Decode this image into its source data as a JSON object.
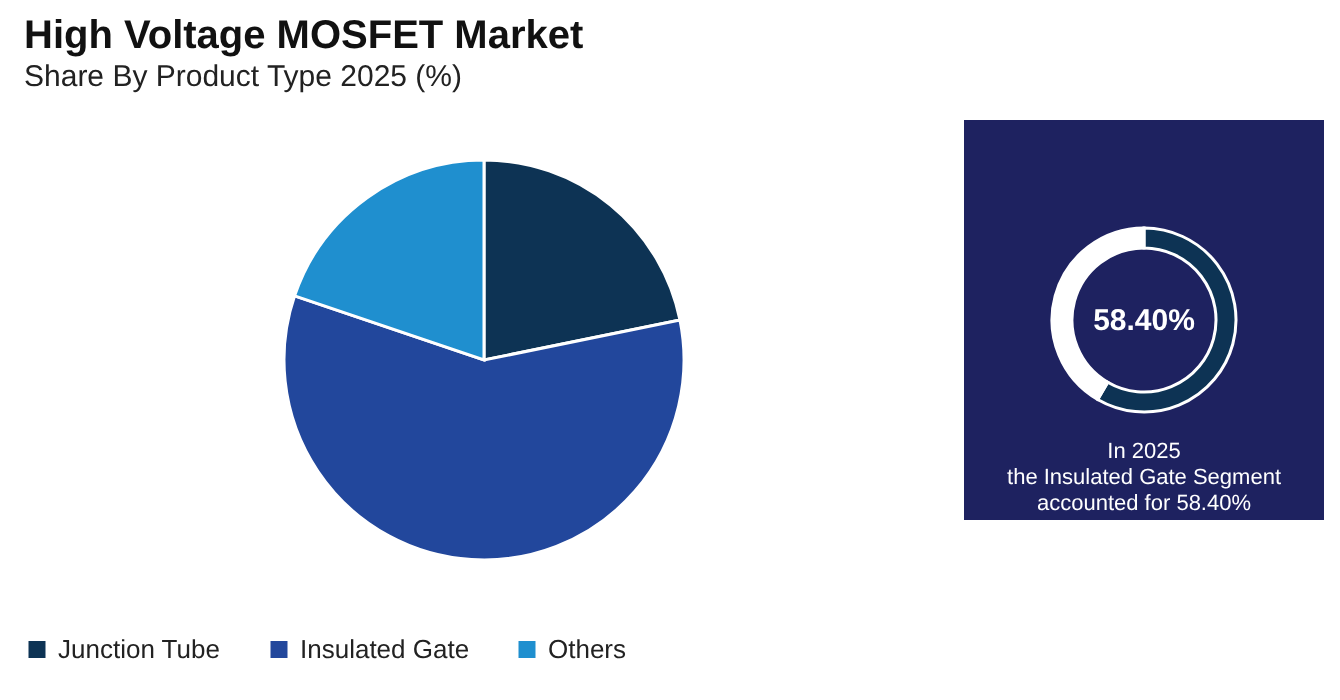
{
  "chart_data": [
    {
      "type": "pie",
      "title": "High Voltage MOSFET Market",
      "subtitle": "Share By Product Type 2025 (%)",
      "categories": [
        "Junction Tube",
        "Insulated Gate",
        "Others"
      ],
      "values": [
        21.8,
        58.4,
        19.8
      ],
      "colors": [
        "#0d3354",
        "#22479c",
        "#1f8fcf"
      ],
      "legend": "bottom"
    },
    {
      "type": "donut",
      "categories": [
        null,
        null
      ],
      "values": [
        58.4,
        41.6
      ],
      "colors": [
        "#0d3354",
        "#ffffff"
      ],
      "annotations": [
        "58.40%",
        "In 2025\nthe Insulated Gate Segment\naccounted for 58.40%"
      ]
    }
  ]
}
